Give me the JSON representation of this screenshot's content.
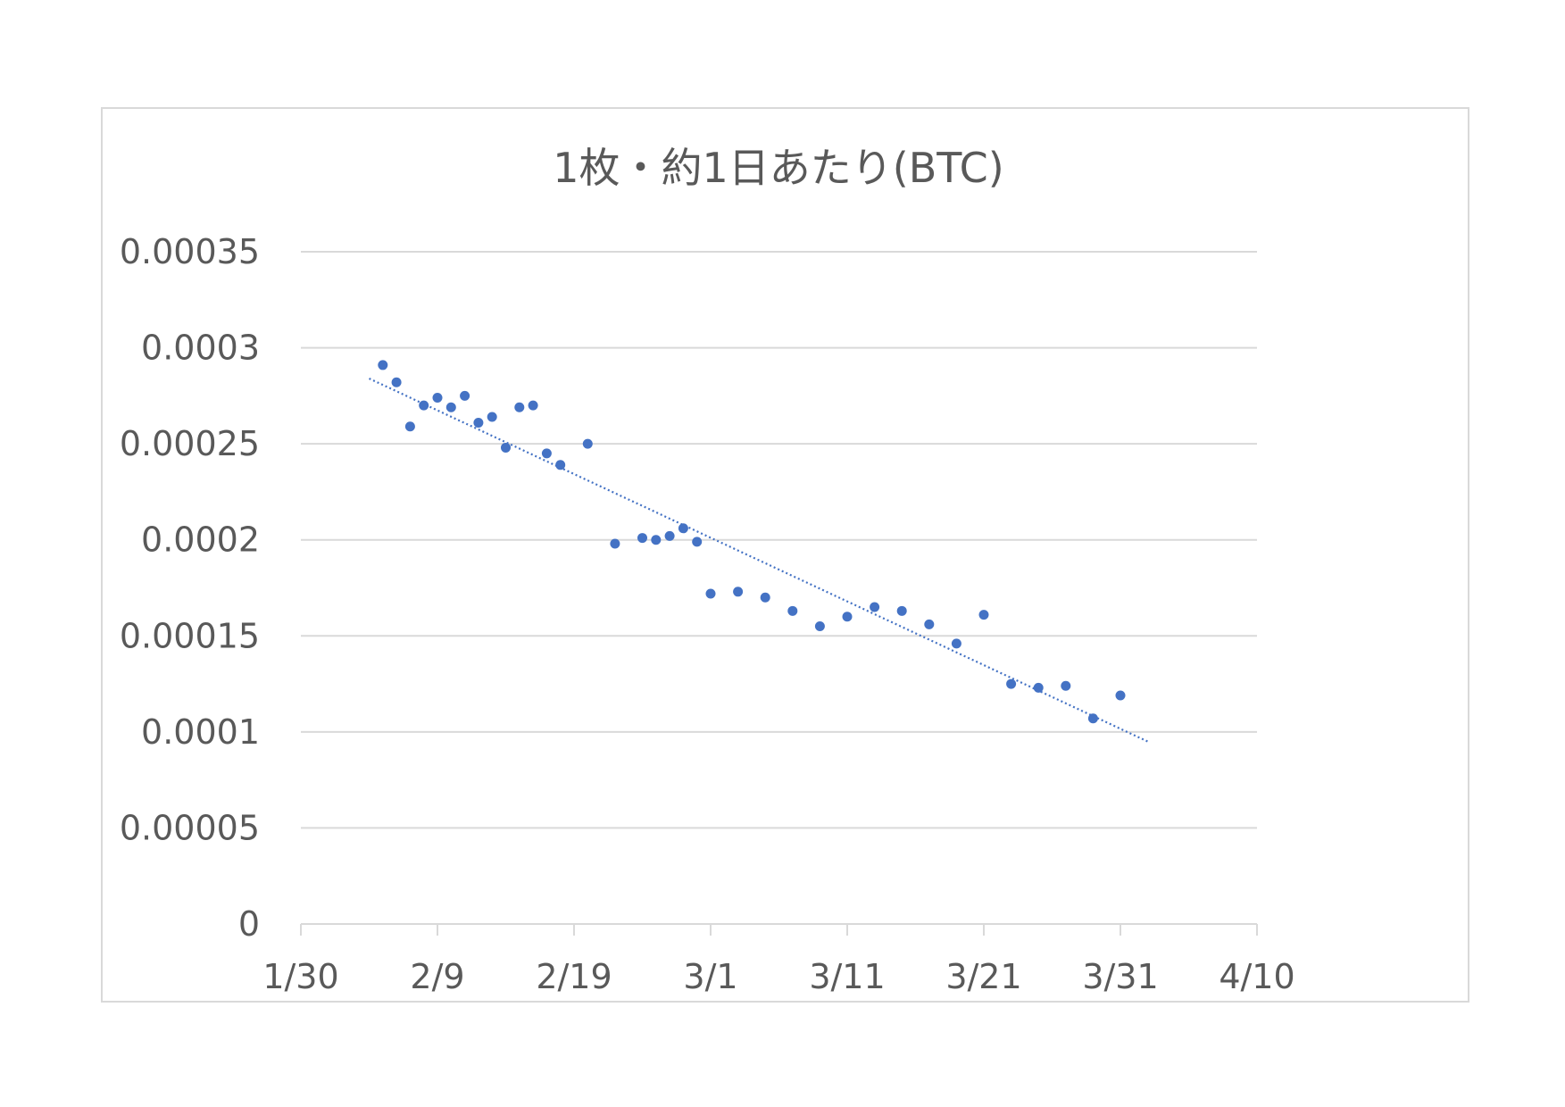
{
  "chart_data": {
    "type": "scatter",
    "title": "1枚・約1日あたり(BTC)",
    "xlabel": "",
    "ylabel": "",
    "x_axis": {
      "kind": "date",
      "ticks": [
        "1/30",
        "2/9",
        "2/19",
        "3/1",
        "3/11",
        "3/21",
        "3/31",
        "4/10"
      ],
      "xlim": [
        "1/30",
        "4/10"
      ]
    },
    "y_axis": {
      "ticks": [
        "0",
        "0.00005",
        "0.0001",
        "0.00015",
        "0.0002",
        "0.00025",
        "0.0003",
        "0.00035"
      ],
      "ylim": [
        0,
        0.00035
      ]
    },
    "grid": true,
    "legend": "none",
    "series": [
      {
        "marker_color": "#4472c4",
        "points": [
          {
            "x": "2/5",
            "y": 0.000291
          },
          {
            "x": "2/6",
            "y": 0.000282
          },
          {
            "x": "2/7",
            "y": 0.000259
          },
          {
            "x": "2/8",
            "y": 0.00027
          },
          {
            "x": "2/9",
            "y": 0.000274
          },
          {
            "x": "2/10",
            "y": 0.000269
          },
          {
            "x": "2/11",
            "y": 0.000275
          },
          {
            "x": "2/12",
            "y": 0.000261
          },
          {
            "x": "2/13",
            "y": 0.000264
          },
          {
            "x": "2/14",
            "y": 0.000248
          },
          {
            "x": "2/15",
            "y": 0.000269
          },
          {
            "x": "2/16",
            "y": 0.00027
          },
          {
            "x": "2/17",
            "y": 0.000245
          },
          {
            "x": "2/18",
            "y": 0.000239
          },
          {
            "x": "2/20",
            "y": 0.00025
          },
          {
            "x": "2/22",
            "y": 0.000198
          },
          {
            "x": "2/24",
            "y": 0.000201
          },
          {
            "x": "2/25",
            "y": 0.0002
          },
          {
            "x": "2/26",
            "y": 0.000202
          },
          {
            "x": "2/27",
            "y": 0.000206
          },
          {
            "x": "2/28",
            "y": 0.000199
          },
          {
            "x": "3/1",
            "y": 0.000172
          },
          {
            "x": "3/3",
            "y": 0.000173
          },
          {
            "x": "3/5",
            "y": 0.00017
          },
          {
            "x": "3/7",
            "y": 0.000163
          },
          {
            "x": "3/9",
            "y": 0.000155
          },
          {
            "x": "3/11",
            "y": 0.00016
          },
          {
            "x": "3/13",
            "y": 0.000165
          },
          {
            "x": "3/15",
            "y": 0.000163
          },
          {
            "x": "3/17",
            "y": 0.000156
          },
          {
            "x": "3/19",
            "y": 0.000146
          },
          {
            "x": "3/21",
            "y": 0.000161
          },
          {
            "x": "3/23",
            "y": 0.000125
          },
          {
            "x": "3/25",
            "y": 0.000123
          },
          {
            "x": "3/27",
            "y": 0.000124
          },
          {
            "x": "3/29",
            "y": 0.000107
          },
          {
            "x": "3/31",
            "y": 0.000119
          }
        ]
      }
    ],
    "trendline": {
      "type": "linear",
      "style": "dotted",
      "color": "#4472c4",
      "start": {
        "x": "2/4",
        "y": 0.000284
      },
      "end": {
        "x": "4/2",
        "y": 9.5e-05
      }
    }
  }
}
